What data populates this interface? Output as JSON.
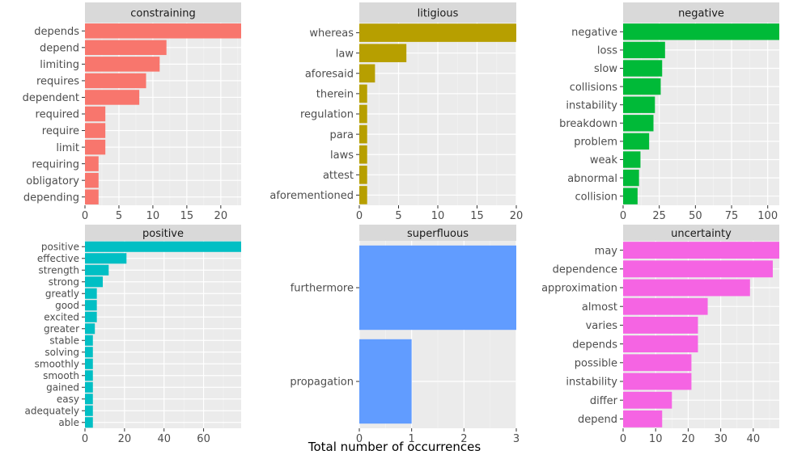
{
  "figure": {
    "xlabel": "Total number of occurrences"
  },
  "chart_data": [
    {
      "type": "bar",
      "title": "constraining",
      "color": "#F8766D",
      "categories": [
        "depends",
        "depend",
        "limiting",
        "requires",
        "dependent",
        "required",
        "require",
        "limit",
        "requiring",
        "obligatory",
        "depending"
      ],
      "values": [
        23,
        12,
        11,
        9,
        8,
        3,
        3,
        3,
        2,
        2,
        2
      ],
      "xlim": [
        0,
        23
      ],
      "xticks": [
        0,
        5,
        10,
        15,
        20
      ]
    },
    {
      "type": "bar",
      "title": "litigious",
      "color": "#B79F00",
      "categories": [
        "whereas",
        "law",
        "aforesaid",
        "therein",
        "regulation",
        "para",
        "laws",
        "attest",
        "aforementioned"
      ],
      "values": [
        20,
        6,
        2,
        1,
        1,
        1,
        1,
        1,
        1
      ],
      "xlim": [
        0,
        20
      ],
      "xticks": [
        0,
        5,
        10,
        15,
        20
      ]
    },
    {
      "type": "bar",
      "title": "negative",
      "color": "#00BA38",
      "categories": [
        "negative",
        "loss",
        "slow",
        "collisions",
        "instability",
        "breakdown",
        "problem",
        "weak",
        "abnormal",
        "collision"
      ],
      "values": [
        108,
        29,
        27,
        26,
        22,
        21,
        18,
        12,
        11,
        10
      ],
      "xlim": [
        0,
        108
      ],
      "xticks": [
        0,
        25,
        50,
        75,
        100
      ]
    },
    {
      "type": "bar",
      "title": "positive",
      "color": "#00BFC4",
      "categories": [
        "positive",
        "effective",
        "strength",
        "strong",
        "greatly",
        "good",
        "excited",
        "greater",
        "stable",
        "solving",
        "smoothly",
        "smooth",
        "gained",
        "easy",
        "adequately",
        "able"
      ],
      "values": [
        79,
        21,
        12,
        9,
        6,
        6,
        6,
        5,
        4,
        4,
        4,
        4,
        4,
        4,
        4,
        4
      ],
      "xlim": [
        0,
        79
      ],
      "xticks": [
        0,
        20,
        40,
        60
      ]
    },
    {
      "type": "bar",
      "title": "superfluous",
      "color": "#619CFF",
      "categories": [
        "furthermore",
        "propagation"
      ],
      "values": [
        3,
        1
      ],
      "xlim": [
        0,
        3
      ],
      "xticks": [
        0,
        1,
        2,
        3
      ]
    },
    {
      "type": "bar",
      "title": "uncertainty",
      "color": "#F564E3",
      "categories": [
        "may",
        "dependence",
        "approximation",
        "almost",
        "varies",
        "depends",
        "possible",
        "instability",
        "differ",
        "depend"
      ],
      "values": [
        48,
        46,
        39,
        26,
        23,
        23,
        21,
        21,
        15,
        12
      ],
      "xlim": [
        0,
        48
      ],
      "xticks": [
        0,
        10,
        20,
        30,
        40
      ]
    }
  ]
}
